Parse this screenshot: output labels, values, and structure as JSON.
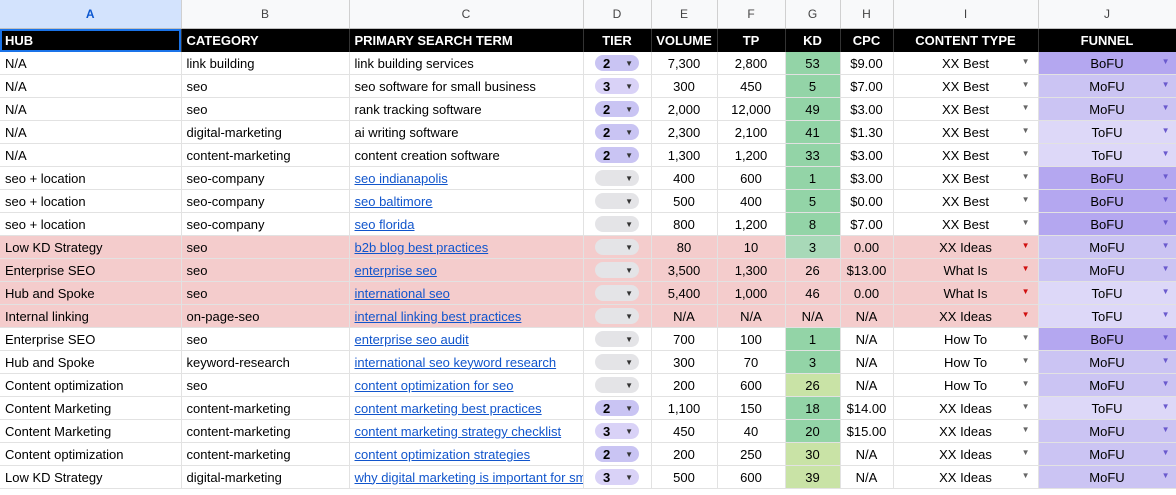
{
  "columns": [
    "A",
    "B",
    "C",
    "D",
    "E",
    "F",
    "G",
    "H",
    "I",
    "J"
  ],
  "headers": {
    "hub": "HUB",
    "category": "CATEGORY",
    "term": "PRIMARY SEARCH TERM",
    "tier": "TIER",
    "volume": "VOLUME",
    "tp": "TP",
    "kd": "KD",
    "cpc": "CPC",
    "content_type": "CONTENT TYPE",
    "funnel": "FUNNEL"
  },
  "colors": {
    "kd_green": "#93d4a7",
    "kd_lime": "#c9e3a6",
    "kd_yellow": "#f7e08c",
    "pink_row": "#f4cccc",
    "bofu": "#b4a7f0",
    "mofu": "#cbc4f3",
    "tofu": "#ddd8f8"
  },
  "rows": [
    {
      "hub": "N/A",
      "category": "link building",
      "term": "link building services",
      "link": false,
      "tier": "2",
      "volume": "7,300",
      "tp": "2,800",
      "kd": "53",
      "kd_color": "green",
      "cpc": "$9.00",
      "content_type": "XX Best",
      "funnel": "BoFU",
      "pink": false,
      "sep": false
    },
    {
      "hub": "N/A",
      "category": "seo",
      "term": "seo software for small business",
      "link": false,
      "tier": "3",
      "volume": "300",
      "tp": "450",
      "kd": "5",
      "kd_color": "green",
      "cpc": "$7.00",
      "content_type": "XX Best",
      "funnel": "MoFU",
      "pink": false,
      "sep": false
    },
    {
      "hub": "N/A",
      "category": "seo",
      "term": "rank tracking software",
      "link": false,
      "tier": "2",
      "volume": "2,000",
      "tp": "12,000",
      "kd": "49",
      "kd_color": "green",
      "cpc": "$3.00",
      "content_type": "XX Best",
      "funnel": "MoFU",
      "pink": false,
      "sep": false
    },
    {
      "hub": "N/A",
      "category": "digital-marketing",
      "term": "ai writing software",
      "link": false,
      "tier": "2",
      "volume": "2,300",
      "tp": "2,100",
      "kd": "41",
      "kd_color": "green",
      "cpc": "$1.30",
      "content_type": "XX Best",
      "funnel": "ToFU",
      "pink": false,
      "sep": false
    },
    {
      "hub": "N/A",
      "category": "content-marketing",
      "term": "content creation software",
      "link": false,
      "tier": "2",
      "volume": "1,300",
      "tp": "1,200",
      "kd": "33",
      "kd_color": "green",
      "cpc": "$3.00",
      "content_type": "XX Best",
      "funnel": "ToFU",
      "pink": false,
      "sep": false
    },
    {
      "hub": "seo + location",
      "category": "seo-company",
      "term": "seo indianapolis",
      "link": true,
      "tier": "",
      "volume": "400",
      "tp": "600",
      "kd": "1",
      "kd_color": "green",
      "cpc": "$3.00",
      "content_type": "XX Best",
      "funnel": "BoFU",
      "pink": false,
      "sep": true
    },
    {
      "hub": "seo + location",
      "category": "seo-company",
      "term": "seo baltimore",
      "link": true,
      "tier": "",
      "volume": "500",
      "tp": "400",
      "kd": "5",
      "kd_color": "green",
      "cpc": "$0.00",
      "content_type": "XX Best",
      "funnel": "BoFU",
      "pink": false,
      "sep": false
    },
    {
      "hub": "seo + location",
      "category": "seo-company",
      "term": "seo florida",
      "link": true,
      "tier": "",
      "volume": "800",
      "tp": "1,200",
      "kd": "8",
      "kd_color": "green",
      "cpc": "$7.00",
      "content_type": "XX Best",
      "funnel": "BoFU",
      "pink": false,
      "sep": false
    },
    {
      "hub": "Low KD Strategy",
      "category": "seo",
      "term": "b2b blog best practices",
      "link": true,
      "tier": "",
      "volume": "80",
      "tp": "10",
      "kd": "3",
      "kd_color": "green",
      "cpc": "0.00",
      "content_type": "XX Ideas",
      "funnel": "MoFU",
      "pink": true,
      "sep": false
    },
    {
      "hub": "Enterprise SEO",
      "category": "seo",
      "term": "enterprise seo",
      "link": true,
      "tier": "",
      "volume": "3,500",
      "tp": "1,300",
      "kd": "26",
      "kd_color": "lime",
      "cpc": "$13.00",
      "content_type": "What Is",
      "funnel": "MoFU",
      "pink": true,
      "sep": false
    },
    {
      "hub": "Hub and Spoke",
      "category": "seo",
      "term": "international seo",
      "link": true,
      "tier": "",
      "volume": "5,400",
      "tp": "1,000",
      "kd": "46",
      "kd_color": "yellow",
      "cpc": "0.00",
      "content_type": "What Is",
      "funnel": "ToFU",
      "pink": true,
      "sep": false
    },
    {
      "hub": "Internal linking",
      "category": "on-page-seo",
      "term": "internal linking best practices",
      "link": true,
      "tier": "",
      "volume": "N/A",
      "tp": "N/A",
      "kd": "N/A",
      "kd_color": "none",
      "cpc": "N/A",
      "content_type": "XX Ideas",
      "funnel": "ToFU",
      "pink": true,
      "sep": false
    },
    {
      "hub": "Enterprise SEO",
      "category": "seo",
      "term": "enterprise seo audit",
      "link": true,
      "tier": "",
      "volume": "700",
      "tp": "100",
      "kd": "1",
      "kd_color": "green",
      "cpc": "N/A",
      "content_type": "How To",
      "funnel": "BoFU",
      "pink": false,
      "sep": false
    },
    {
      "hub": "Hub and Spoke",
      "category": "keyword-research",
      "term": "international seo keyword research",
      "link": true,
      "tier": "",
      "volume": "300",
      "tp": "70",
      "kd": "3",
      "kd_color": "green",
      "cpc": "N/A",
      "content_type": "How To",
      "funnel": "MoFU",
      "pink": false,
      "sep": false
    },
    {
      "hub": "Content optimization",
      "category": "seo",
      "term": "content optimization for seo",
      "link": true,
      "tier": "",
      "volume": "200",
      "tp": "600",
      "kd": "26",
      "kd_color": "lime",
      "cpc": "N/A",
      "content_type": "How To",
      "funnel": "MoFU",
      "pink": false,
      "sep": false
    },
    {
      "hub": "Content Marketing",
      "category": "content-marketing",
      "term": "content marketing best practices",
      "link": true,
      "tier": "2",
      "volume": "1,100",
      "tp": "150",
      "kd": "18",
      "kd_color": "green",
      "cpc": "$14.00",
      "content_type": "XX Ideas",
      "funnel": "ToFU",
      "pink": false,
      "sep": true
    },
    {
      "hub": "Content Marketing",
      "category": "content-marketing",
      "term": "content marketing strategy checklist",
      "link": true,
      "tier": "3",
      "volume": "450",
      "tp": "40",
      "kd": "20",
      "kd_color": "green",
      "cpc": "$15.00",
      "content_type": "XX Ideas",
      "funnel": "MoFU",
      "pink": false,
      "sep": false
    },
    {
      "hub": "Content optimization",
      "category": "content-marketing",
      "term": "content optimization strategies",
      "link": true,
      "tier": "2",
      "volume": "200",
      "tp": "250",
      "kd": "30",
      "kd_color": "lime",
      "cpc": "N/A",
      "content_type": "XX Ideas",
      "funnel": "MoFU",
      "pink": false,
      "sep": false
    },
    {
      "hub": "Low KD Strategy",
      "category": "digital-marketing",
      "term": "why digital marketing is important for sm",
      "link": true,
      "tier": "3",
      "volume": "500",
      "tp": "600",
      "kd": "39",
      "kd_color": "lime",
      "cpc": "N/A",
      "content_type": "XX Ideas",
      "funnel": "MoFU",
      "pink": false,
      "sep": false
    }
  ]
}
